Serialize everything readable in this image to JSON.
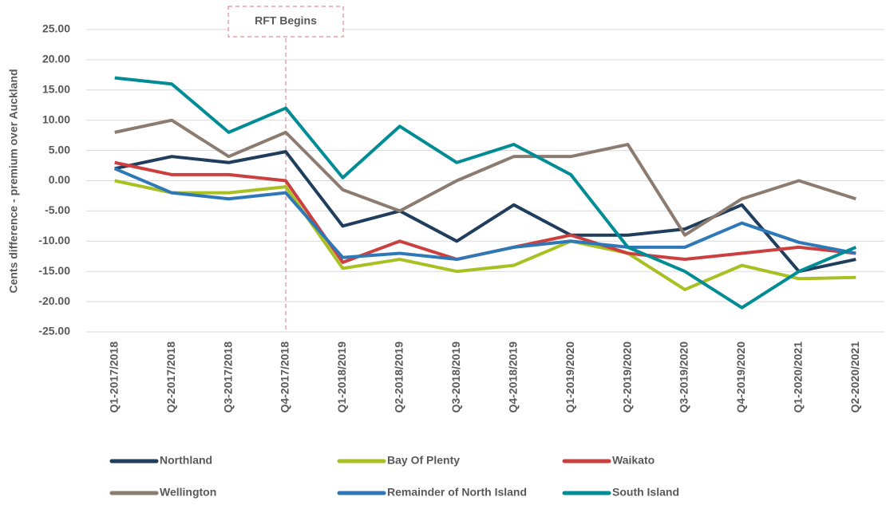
{
  "chart_data": {
    "type": "line",
    "y_label": "Cents difference - premium over Auckland",
    "categories": [
      "Q1-2017/2018",
      "Q2-2017/2018",
      "Q3-2017/2018",
      "Q4-2017/2018",
      "Q1-2018/2019",
      "Q2-2018/2019",
      "Q3-2018/2019",
      "Q4-2018/2019",
      "Q1-2019/2020",
      "Q2-2019/2020",
      "Q3-2019/2020",
      "Q4-2019/2020",
      "Q1-2020/2021",
      "Q2-2020/2021"
    ],
    "series": [
      {
        "name": "Northland",
        "color": "#1f3d5c",
        "values": [
          2,
          4,
          3,
          4.8,
          -7.5,
          -5,
          -10,
          -4,
          -9,
          -9,
          -8,
          -4,
          -15,
          -13
        ]
      },
      {
        "name": "Bay Of Plenty",
        "color": "#a9c023",
        "values": [
          0,
          -2,
          -2,
          -1,
          -14.5,
          -13,
          -15,
          -14,
          -10,
          -12,
          -18,
          -14,
          -16.2,
          -16
        ]
      },
      {
        "name": "Waikato",
        "color": "#cc3f3f",
        "values": [
          3,
          1,
          1,
          0,
          -13.5,
          -10,
          -13,
          -11,
          -9,
          -12,
          -13,
          -12,
          -11,
          -12
        ]
      },
      {
        "name": "Wellington",
        "color": "#8c7b6f",
        "values": [
          8,
          10,
          4,
          8,
          -1.5,
          -5,
          0,
          4,
          4,
          6,
          -9,
          -3,
          0,
          -3
        ]
      },
      {
        "name": "Remainder of North Island",
        "color": "#2f78b7",
        "values": [
          2,
          -2,
          -3,
          -2,
          -12.7,
          -12,
          -13,
          -11,
          -10,
          -11,
          -11,
          -7,
          -10.2,
          -12
        ]
      },
      {
        "name": "South Island",
        "color": "#008c95",
        "values": [
          17,
          16,
          8,
          12,
          0.5,
          9,
          3,
          6,
          1,
          -11,
          -15,
          -21,
          -15,
          -11
        ]
      }
    ],
    "ylim": [
      -25,
      25
    ],
    "yticks": [
      {
        "value": -25,
        "label": "-25.00"
      },
      {
        "value": -20,
        "label": "-20.00"
      },
      {
        "value": -15,
        "label": "-15.00"
      },
      {
        "value": -10,
        "label": "-10.00"
      },
      {
        "value": -5,
        "label": "-5.00"
      },
      {
        "value": 0,
        "label": "0.00"
      },
      {
        "value": 5,
        "label": "5.00"
      },
      {
        "value": 10,
        "label": "10.00"
      },
      {
        "value": 15,
        "label": "15.00"
      },
      {
        "value": 20,
        "label": "20.00"
      },
      {
        "value": 25,
        "label": "25.00"
      }
    ],
    "grid": true,
    "annotations": [
      {
        "text": "RFT Begins",
        "x": "Q4-2017/2018"
      }
    ]
  }
}
